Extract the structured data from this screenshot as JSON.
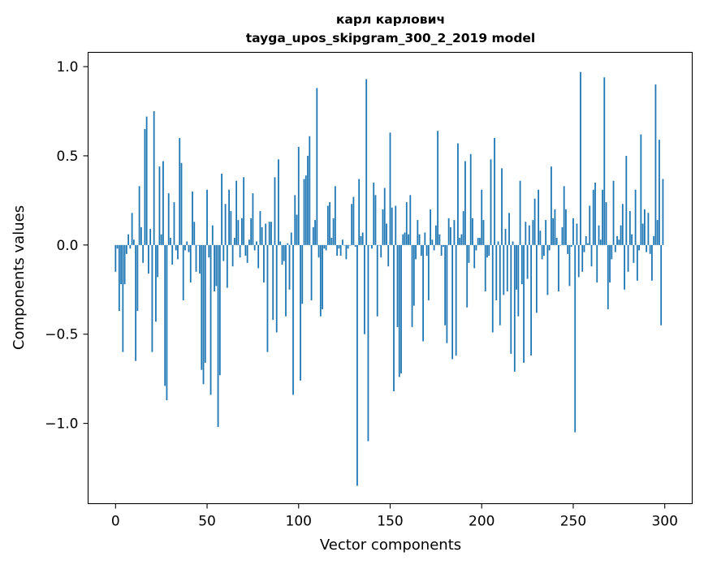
{
  "chart_data": {
    "type": "bar",
    "title": "карл карлович",
    "subtitle": "tayga_upos_skipgram_300_2_2019 model",
    "xlabel": "Vector components",
    "ylabel": "Components values",
    "xlim": [
      -15,
      315
    ],
    "ylim": [
      -1.45,
      1.08
    ],
    "x_ticks": [
      0,
      50,
      100,
      150,
      200,
      250,
      300
    ],
    "x_tick_labels": [
      "0",
      "50",
      "100",
      "150",
      "200",
      "250",
      "300"
    ],
    "y_ticks": [
      1.0,
      0.5,
      0.0,
      -0.5,
      -1.0
    ],
    "y_tick_labels": [
      "1.0",
      "0.5",
      "0.0",
      "−0.5",
      "−1.0"
    ],
    "grid": false,
    "bar_color": "#1f77b4",
    "values": [
      -0.15,
      -0.02,
      -0.37,
      -0.22,
      -0.6,
      -0.22,
      -0.05,
      0.06,
      -0.02,
      0.18,
      0.03,
      -0.65,
      -0.37,
      0.33,
      0.1,
      -0.1,
      0.65,
      0.72,
      -0.16,
      0.09,
      -0.6,
      0.75,
      -0.43,
      -0.18,
      0.44,
      0.06,
      0.47,
      -0.79,
      -0.87,
      0.29,
      0.04,
      -0.11,
      0.24,
      -0.03,
      -0.08,
      0.6,
      0.46,
      -0.31,
      -0.03,
      0.02,
      -0.04,
      -0.21,
      0.3,
      0.13,
      -0.15,
      0.0,
      -0.16,
      -0.7,
      -0.78,
      -0.66,
      0.31,
      -0.07,
      -0.84,
      0.11,
      -0.26,
      -0.23,
      -1.02,
      -0.73,
      0.4,
      -0.09,
      0.23,
      -0.24,
      0.31,
      0.19,
      -0.12,
      0.04,
      0.36,
      0.14,
      -0.07,
      0.15,
      0.38,
      -0.06,
      -0.1,
      0.03,
      0.15,
      0.29,
      -0.03,
      0.02,
      -0.13,
      0.19,
      0.1,
      -0.21,
      0.12,
      -0.6,
      0.13,
      0.13,
      -0.42,
      0.38,
      -0.49,
      0.48,
      0.02,
      -0.11,
      -0.09,
      -0.4,
      0.01,
      -0.25,
      0.07,
      -0.84,
      0.28,
      0.17,
      0.55,
      -0.76,
      -0.33,
      0.37,
      0.39,
      0.5,
      0.61,
      -0.31,
      0.1,
      0.14,
      0.88,
      -0.07,
      -0.4,
      -0.36,
      -0.02,
      -0.03,
      0.22,
      0.24,
      0.04,
      0.15,
      0.33,
      -0.06,
      -0.02,
      -0.06,
      0.03,
      0.0,
      -0.08,
      -0.02,
      0.0,
      0.23,
      0.27,
      -0.01,
      -1.35,
      0.37,
      0.05,
      0.07,
      -0.5,
      0.93,
      -1.1,
      0.0,
      -0.02,
      0.35,
      0.28,
      -0.4,
      0.0,
      -0.07,
      0.2,
      0.32,
      0.12,
      -0.12,
      0.63,
      0.21,
      -0.82,
      0.22,
      -0.46,
      -0.74,
      -0.72,
      0.06,
      0.07,
      0.24,
      0.06,
      0.28,
      -0.46,
      -0.34,
      -0.08,
      0.14,
      0.06,
      -0.06,
      -0.54,
      0.07,
      -0.06,
      -0.31,
      0.2,
      0.03,
      -0.03,
      0.11,
      0.64,
      0.06,
      -0.06,
      -0.01,
      -0.45,
      -0.55,
      0.15,
      0.1,
      -0.64,
      0.14,
      -0.62,
      0.57,
      0.04,
      0.06,
      0.19,
      0.47,
      -0.35,
      -0.1,
      0.51,
      0.15,
      -0.13,
      -0.03,
      0.04,
      0.04,
      0.31,
      0.14,
      -0.26,
      -0.07,
      -0.06,
      0.48,
      -0.49,
      0.6,
      -0.31,
      0.02,
      -0.45,
      0.43,
      -0.28,
      0.09,
      -0.26,
      0.18,
      -0.61,
      0.02,
      -0.71,
      -0.25,
      -0.4,
      0.36,
      -0.22,
      -0.66,
      0.13,
      -0.19,
      0.11,
      -0.62,
      0.14,
      0.26,
      -0.38,
      0.31,
      0.08,
      -0.08,
      -0.06,
      0.14,
      -0.28,
      -0.03,
      0.44,
      0.15,
      0.2,
      0.04,
      -0.26,
      0.0,
      0.1,
      0.33,
      0.2,
      -0.05,
      -0.23,
      -0.01,
      0.15,
      -1.05,
      0.12,
      -0.18,
      0.97,
      -0.15,
      -0.04,
      0.05,
      0.01,
      0.22,
      -0.12,
      0.31,
      0.35,
      -0.21,
      0.11,
      0.03,
      0.31,
      0.94,
      0.24,
      -0.36,
      -0.21,
      -0.08,
      0.36,
      -0.04,
      0.05,
      0.03,
      0.11,
      0.23,
      -0.25,
      0.5,
      -0.15,
      0.19,
      0.06,
      -0.1,
      0.31,
      -0.2,
      -0.03,
      0.62,
      0.12,
      0.2,
      -0.04,
      0.18,
      -0.05,
      -0.2,
      0.05,
      0.9,
      0.14,
      0.59,
      -0.45,
      0.37
    ]
  }
}
